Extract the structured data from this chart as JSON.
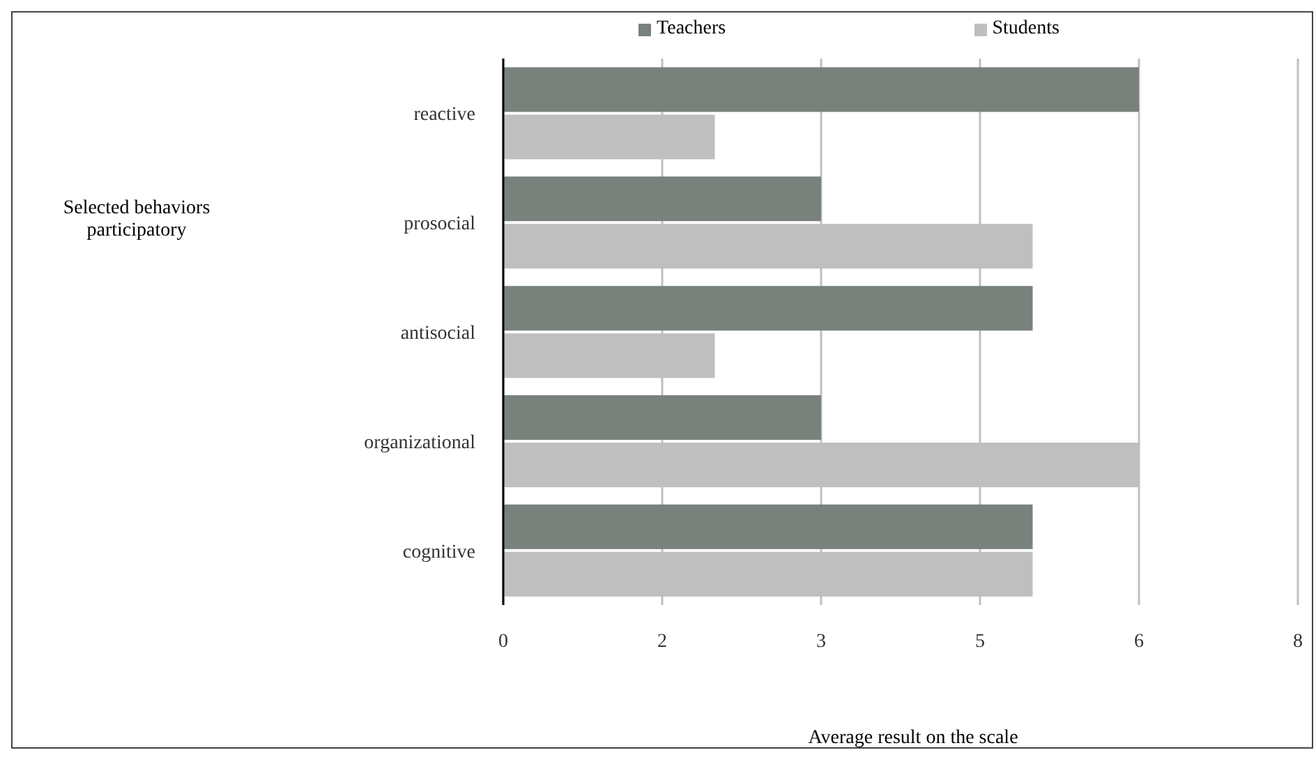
{
  "chart_data": {
    "type": "bar",
    "orientation": "horizontal",
    "annotations": [
      "Selected behaviors participatory"
    ],
    "xlabel": "Average result on the scale",
    "categories": [
      "reactive",
      "prosocial",
      "antisocial",
      "organizational",
      "cognitive"
    ],
    "series": [
      {
        "name": "Teachers",
        "color": "#78817c",
        "values": [
          6.4,
          3.2,
          5.33,
          3.2,
          5.33
        ]
      },
      {
        "name": "Students",
        "color": "#bfbfbf",
        "values": [
          2.13,
          5.33,
          2.13,
          6.4,
          5.33
        ]
      }
    ],
    "xlim": [
      0,
      8
    ],
    "xticks": [
      0,
      {
        "value": 1.6,
        "label": "2"
      },
      {
        "value": 3.2,
        "label": "3"
      },
      {
        "value": 4.8,
        "label": "5"
      },
      {
        "value": 6.4,
        "label": "6"
      },
      8
    ],
    "grid": "x",
    "legend": "top"
  }
}
